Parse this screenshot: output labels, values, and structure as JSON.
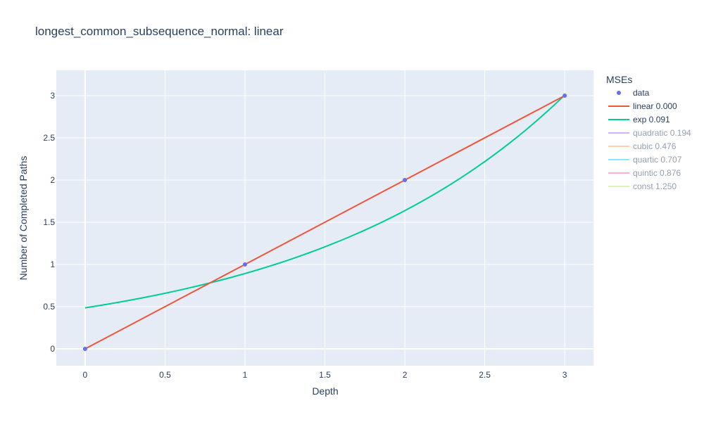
{
  "chart_data": {
    "type": "line",
    "title": "longest_common_subsequence_normal: linear",
    "xlabel": "Depth",
    "ylabel": "Number of Completed Paths",
    "xlim": [
      -0.18,
      3.18
    ],
    "ylim": [
      -0.2,
      3.3
    ],
    "x_ticks": [
      0,
      0.5,
      1,
      1.5,
      2,
      2.5,
      3
    ],
    "x_tick_labels": [
      "0",
      "0.5",
      "1",
      "1.5",
      "2",
      "2.5",
      "3"
    ],
    "y_ticks": [
      0,
      0.5,
      1,
      1.5,
      2,
      2.5,
      3
    ],
    "y_tick_labels": [
      "0",
      "0.5",
      "1",
      "1.5",
      "2",
      "2.5",
      "3"
    ],
    "grid": true,
    "background": "#e5ecf6",
    "legend": {
      "title": "MSEs",
      "placement": "right",
      "items": [
        {
          "label": "data",
          "kind": "marker",
          "color": "#636efa",
          "opacity": 1
        },
        {
          "label": "linear 0.000",
          "kind": "line",
          "color": "#ef553b",
          "opacity": 1
        },
        {
          "label": "exp 0.091",
          "kind": "line",
          "color": "#00cc96",
          "opacity": 1
        },
        {
          "label": "quadratic 0.194",
          "kind": "line",
          "color": "#ab63fa",
          "opacity": 0.5
        },
        {
          "label": "cubic 0.476",
          "kind": "line",
          "color": "#ffa15a",
          "opacity": 0.5
        },
        {
          "label": "quartic 0.707",
          "kind": "line",
          "color": "#19d3f3",
          "opacity": 0.5
        },
        {
          "label": "quintic 0.876",
          "kind": "line",
          "color": "#ff6692",
          "opacity": 0.5
        },
        {
          "label": "const 1.250",
          "kind": "line",
          "color": "#b6e880",
          "opacity": 0.5
        }
      ]
    },
    "series": [
      {
        "name": "data",
        "mode": "markers",
        "color": "#636efa",
        "x": [
          0,
          1,
          2,
          3
        ],
        "y": [
          0,
          1,
          2,
          3
        ]
      },
      {
        "name": "linear 0.000",
        "mode": "lines",
        "color": "#ef553b",
        "x": [
          0,
          3
        ],
        "y": [
          0,
          3
        ]
      },
      {
        "name": "exp 0.091",
        "mode": "lines",
        "color": "#00cc96",
        "model": {
          "a": 0.486,
          "b": 0.6074
        },
        "x_range": [
          0,
          3
        ]
      }
    ]
  }
}
